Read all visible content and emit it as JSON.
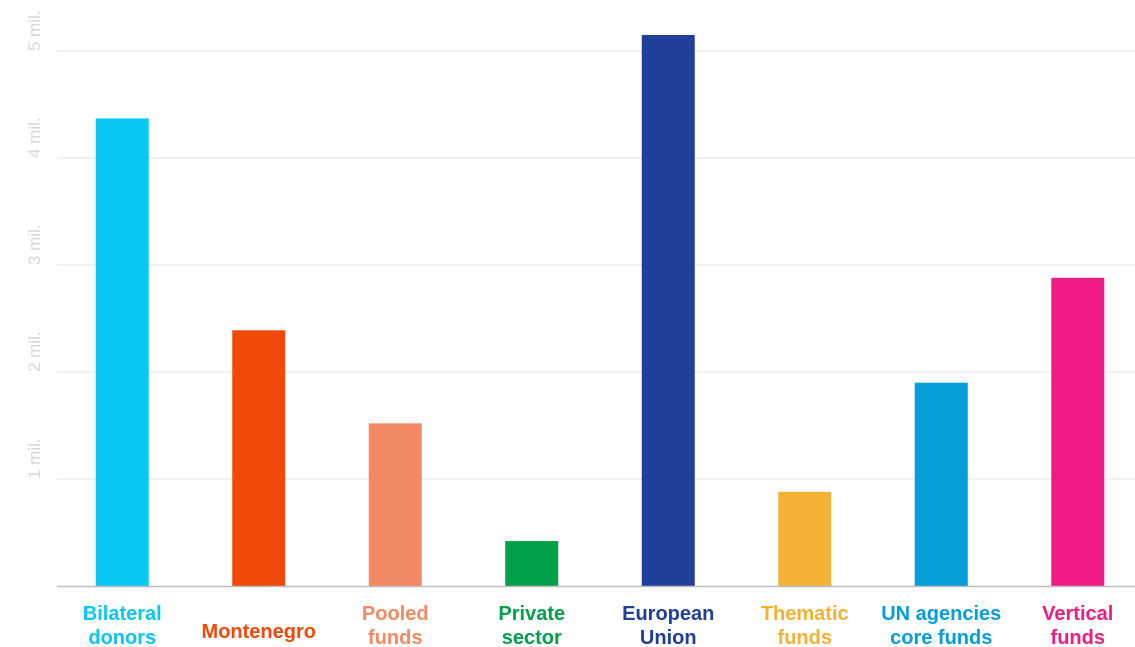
{
  "chart_data": {
    "type": "bar",
    "title": "",
    "xlabel": "",
    "ylabel": "",
    "ylim": [
      0,
      5
    ],
    "grid": true,
    "legend": "none",
    "y_ticks": [
      {
        "value": 1,
        "label": "1 mil."
      },
      {
        "value": 2,
        "label": "2 mil."
      },
      {
        "value": 3,
        "label": "3 mil."
      },
      {
        "value": 4,
        "label": "4 mil."
      },
      {
        "value": 5,
        "label": "5 mil."
      }
    ],
    "categories": [
      {
        "lines": [
          "Bilateral",
          "donors"
        ],
        "color": "#09c7f2"
      },
      {
        "lines": [
          "Montenegro"
        ],
        "color": "#f04a0a"
      },
      {
        "lines": [
          "Pooled",
          "funds"
        ],
        "color": "#f28a64"
      },
      {
        "lines": [
          "Private",
          "sector"
        ],
        "color": "#00a04b"
      },
      {
        "lines": [
          "European",
          "Union"
        ],
        "color": "#213f99"
      },
      {
        "lines": [
          "Thematic",
          "funds"
        ],
        "color": "#f1b235"
      },
      {
        "lines": [
          "UN agencies",
          "core funds"
        ],
        "color": "#069ed9"
      },
      {
        "lines": [
          "Vertical",
          "funds"
        ],
        "color": "#f11b82"
      }
    ],
    "values": [
      4.37,
      2.39,
      1.52,
      0.42,
      5.15,
      0.88,
      1.9,
      2.88
    ]
  }
}
